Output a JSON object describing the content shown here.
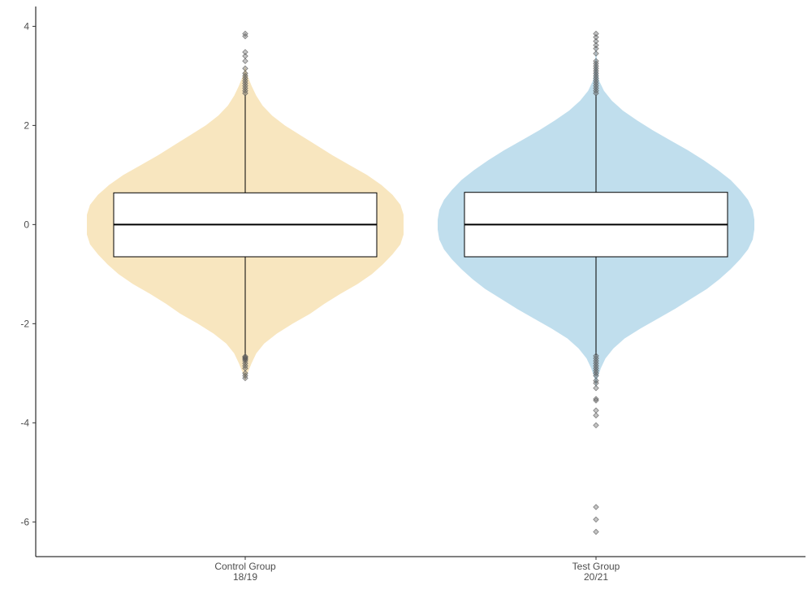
{
  "chart_data": {
    "type": "violin",
    "title": "",
    "xlabel": "",
    "ylabel": "",
    "ylim": [
      -6.7,
      4.4
    ],
    "yticks": [
      -6,
      -4,
      -2,
      0,
      2,
      4
    ],
    "yticklabels": [
      "-6",
      "-4",
      "-2",
      "0",
      "2",
      "4"
    ],
    "grid": false,
    "legend": "none",
    "categories": [
      {
        "line1": "Control Group",
        "line2": "18/19"
      },
      {
        "line1": "Test Group",
        "line2": "20/21"
      }
    ],
    "series": [
      {
        "color": "#f8e6bf",
        "outlier_color": "#555555",
        "density_y": [
          -3.15,
          -3.0,
          -2.8,
          -2.6,
          -2.4,
          -2.2,
          -2.0,
          -1.8,
          -1.6,
          -1.4,
          -1.2,
          -1.0,
          -0.8,
          -0.6,
          -0.4,
          -0.2,
          0.0,
          0.2,
          0.4,
          0.6,
          0.8,
          1.0,
          1.2,
          1.4,
          1.6,
          1.8,
          2.0,
          2.2,
          2.4,
          2.6,
          2.8,
          3.0,
          3.2
        ],
        "density_w": [
          0.0,
          0.015,
          0.04,
          0.07,
          0.12,
          0.2,
          0.3,
          0.41,
          0.5,
          0.6,
          0.71,
          0.8,
          0.87,
          0.93,
          0.98,
          1.0,
          1.0,
          1.0,
          0.98,
          0.93,
          0.86,
          0.77,
          0.66,
          0.55,
          0.45,
          0.35,
          0.25,
          0.17,
          0.11,
          0.07,
          0.04,
          0.015,
          0.0
        ],
        "box": {
          "q1": -0.65,
          "median": 0.0,
          "q3": 0.64,
          "whisker_low": -2.64,
          "whisker_high": 2.62
        },
        "outliers": [
          -3.1,
          -3.05,
          -3.0,
          -2.9,
          -2.85,
          -2.8,
          -2.75,
          -2.72,
          -2.7,
          -2.68,
          -2.66,
          2.65,
          2.7,
          2.75,
          2.8,
          2.85,
          2.9,
          2.95,
          3.0,
          3.05,
          3.15,
          3.3,
          3.4,
          3.48,
          3.8,
          3.85
        ]
      },
      {
        "color": "#c0deed",
        "outlier_color": "#555555",
        "density_y": [
          -3.3,
          -3.1,
          -2.9,
          -2.7,
          -2.5,
          -2.3,
          -2.1,
          -1.9,
          -1.7,
          -1.5,
          -1.3,
          -1.1,
          -0.9,
          -0.7,
          -0.5,
          -0.3,
          -0.1,
          0.0,
          0.1,
          0.3,
          0.5,
          0.7,
          0.9,
          1.1,
          1.3,
          1.5,
          1.7,
          1.9,
          2.1,
          2.3,
          2.5,
          2.7,
          2.9,
          3.1,
          3.3,
          3.6,
          3.9
        ],
        "density_w": [
          0.0,
          0.01,
          0.03,
          0.06,
          0.11,
          0.18,
          0.28,
          0.39,
          0.5,
          0.6,
          0.7,
          0.78,
          0.85,
          0.91,
          0.96,
          0.99,
          1.0,
          1.0,
          1.0,
          0.99,
          0.96,
          0.91,
          0.85,
          0.77,
          0.68,
          0.58,
          0.47,
          0.36,
          0.26,
          0.17,
          0.1,
          0.05,
          0.02,
          0.01,
          0.005,
          0.002,
          0.0
        ],
        "box": {
          "q1": -0.65,
          "median": 0.0,
          "q3": 0.65,
          "whisker_low": -2.64,
          "whisker_high": 2.62
        },
        "outliers": [
          -6.2,
          -5.95,
          -5.7,
          -4.05,
          -3.85,
          -3.75,
          -3.55,
          -3.52,
          -3.3,
          -3.2,
          -3.15,
          -3.05,
          -3.0,
          -2.95,
          -2.9,
          -2.85,
          -2.8,
          -2.75,
          -2.7,
          -2.65,
          2.65,
          2.7,
          2.75,
          2.8,
          2.85,
          2.9,
          2.95,
          3.0,
          3.05,
          3.1,
          3.15,
          3.2,
          3.25,
          3.3,
          3.45,
          3.55,
          3.62,
          3.7,
          3.78,
          3.85
        ]
      }
    ]
  }
}
